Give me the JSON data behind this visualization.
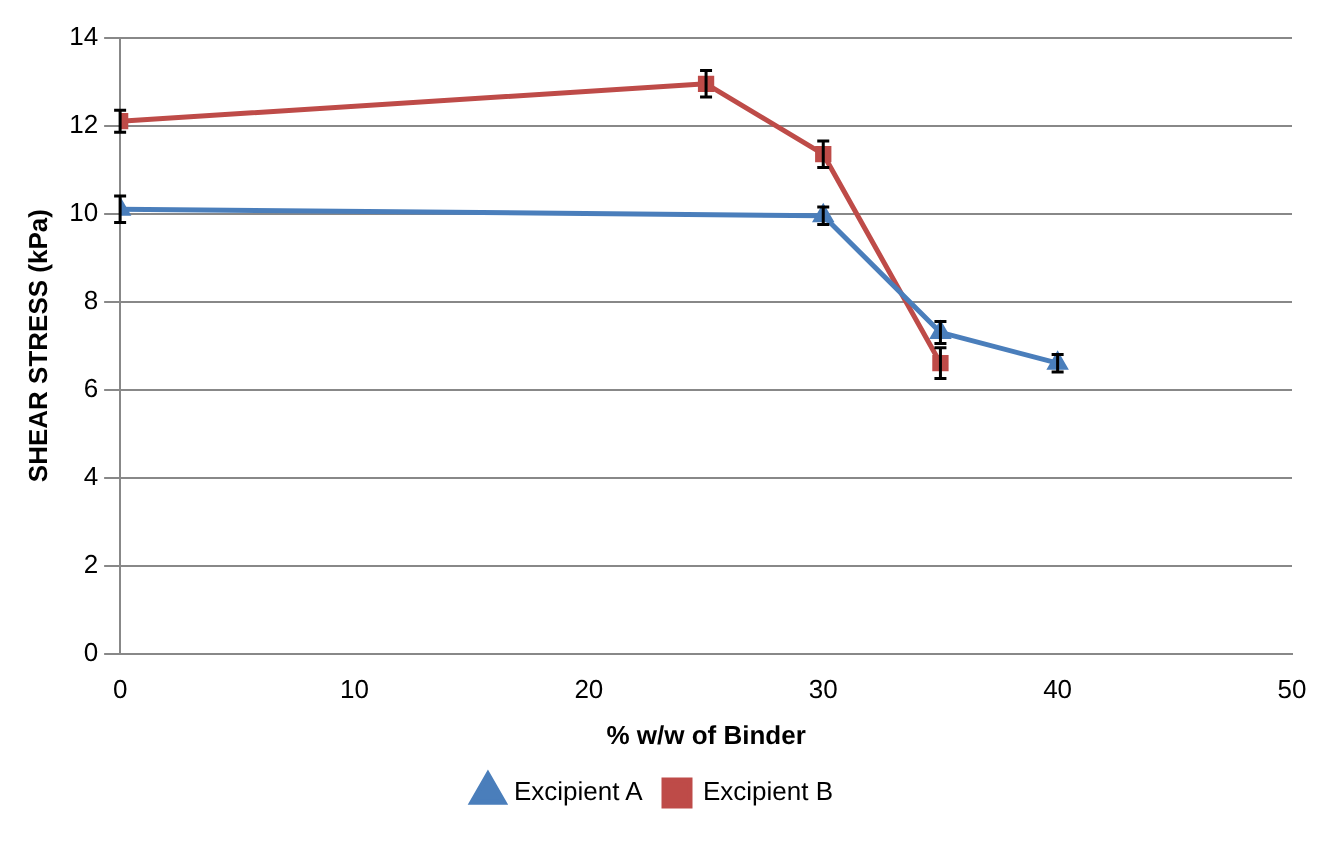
{
  "chart_data": {
    "type": "line",
    "xlabel": "% w/w of Binder",
    "ylabel": "SHEAR STRESS (kPa)",
    "xlim": [
      0,
      50
    ],
    "xticks": [
      0,
      10,
      20,
      30,
      40,
      50
    ],
    "ylim": [
      0,
      14
    ],
    "yticks": [
      0,
      2,
      4,
      6,
      8,
      10,
      12,
      14
    ],
    "grid": "y",
    "legend": "bottom",
    "series": [
      {
        "name": "Excipient A",
        "color": "#4a7ebb",
        "marker": "triangle",
        "x": [
          0,
          30,
          35,
          40
        ],
        "values": [
          10.1,
          9.95,
          7.3,
          6.6
        ],
        "errors": [
          0.3,
          0.2,
          0.25,
          0.2
        ]
      },
      {
        "name": "Excipient B",
        "color": "#be4b48",
        "marker": "square",
        "x": [
          0,
          25,
          30,
          35
        ],
        "values": [
          12.1,
          12.95,
          11.35,
          6.6
        ],
        "errors": [
          0.25,
          0.3,
          0.3,
          0.35
        ]
      }
    ]
  }
}
